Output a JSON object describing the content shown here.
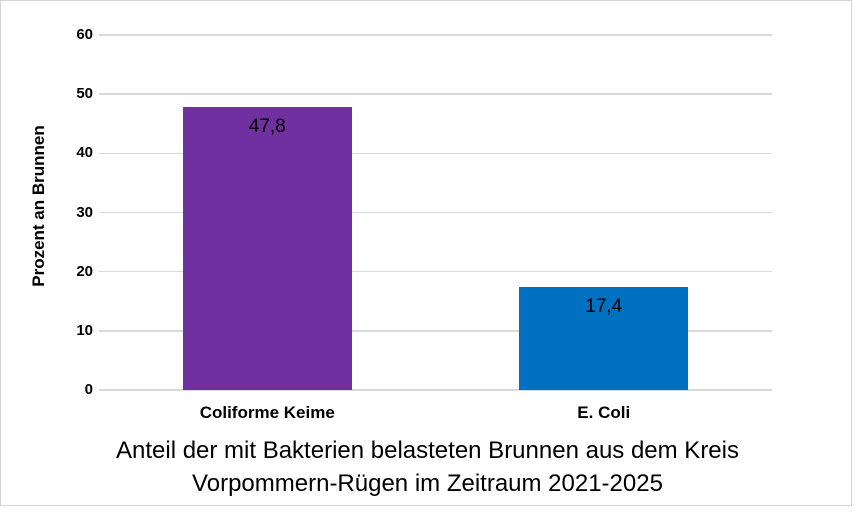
{
  "chart_data": {
    "type": "bar",
    "categories": [
      "Coliforme Keime",
      "E. Coli"
    ],
    "values": [
      47.8,
      17.4
    ],
    "value_labels": [
      "47,8",
      "17,4"
    ],
    "bar_colors": [
      "#7030A0",
      "#0070C0"
    ],
    "title_lines": [
      "Anteil der mit Bakterien belasteten Brunnen aus dem Kreis",
      "Vorpommern-Rügen im Zeitraum 2021-2025"
    ],
    "xlabel": "",
    "ylabel": "Prozent an Brunnen",
    "ylim": [
      0,
      60
    ],
    "yticks": [
      0,
      10,
      20,
      30,
      40,
      50,
      60
    ],
    "grid": true,
    "legend": "none",
    "colors": {
      "gridline": "#d9d9d9",
      "frame": "#d4d4d4",
      "text": "#000000",
      "background": "#ffffff"
    }
  }
}
